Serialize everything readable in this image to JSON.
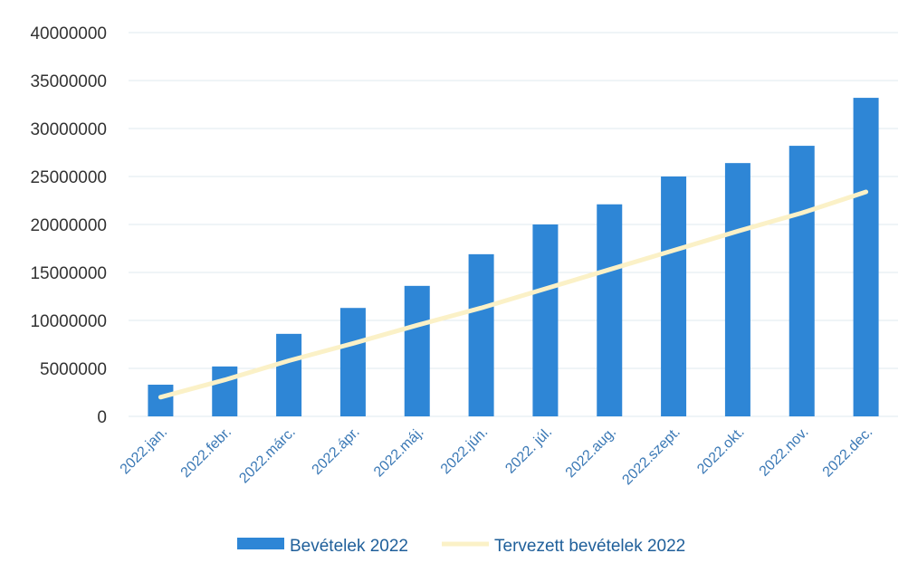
{
  "chart_data": {
    "type": "bar",
    "title": "",
    "xlabel": "",
    "ylabel": "",
    "ylim": [
      0,
      40000000
    ],
    "y_ticks": [
      0,
      5000000,
      10000000,
      15000000,
      20000000,
      25000000,
      30000000,
      35000000,
      40000000
    ],
    "y_tick_labels": [
      "0",
      "5000000",
      "10000000",
      "15000000",
      "20000000",
      "25000000",
      "30000000",
      "35000000",
      "40000000"
    ],
    "categories": [
      "2022.jan.",
      "2022.febr.",
      "2022.márc.",
      "2022.ápr.",
      "2022.máj.",
      "2022.jún.",
      "2022. júl.",
      "2022.aug.",
      "2022.szept.",
      "2022.okt.",
      "2022.nov.",
      "2022.dec."
    ],
    "series": [
      {
        "name": "Bevételek 2022",
        "type": "bar",
        "color": "#2E86D6",
        "values": [
          3300000,
          5200000,
          8600000,
          11300000,
          13600000,
          16900000,
          20000000,
          22100000,
          25000000,
          26400000,
          28200000,
          33200000
        ]
      },
      {
        "name": "Tervezett bevételek 2022",
        "type": "line",
        "color": "#FBF1C7",
        "values": [
          2000000,
          3800000,
          5800000,
          7600000,
          9500000,
          11300000,
          13300000,
          15300000,
          17300000,
          19300000,
          21200000,
          23400000
        ]
      }
    ],
    "grid": true,
    "legend_position": "bottom"
  }
}
